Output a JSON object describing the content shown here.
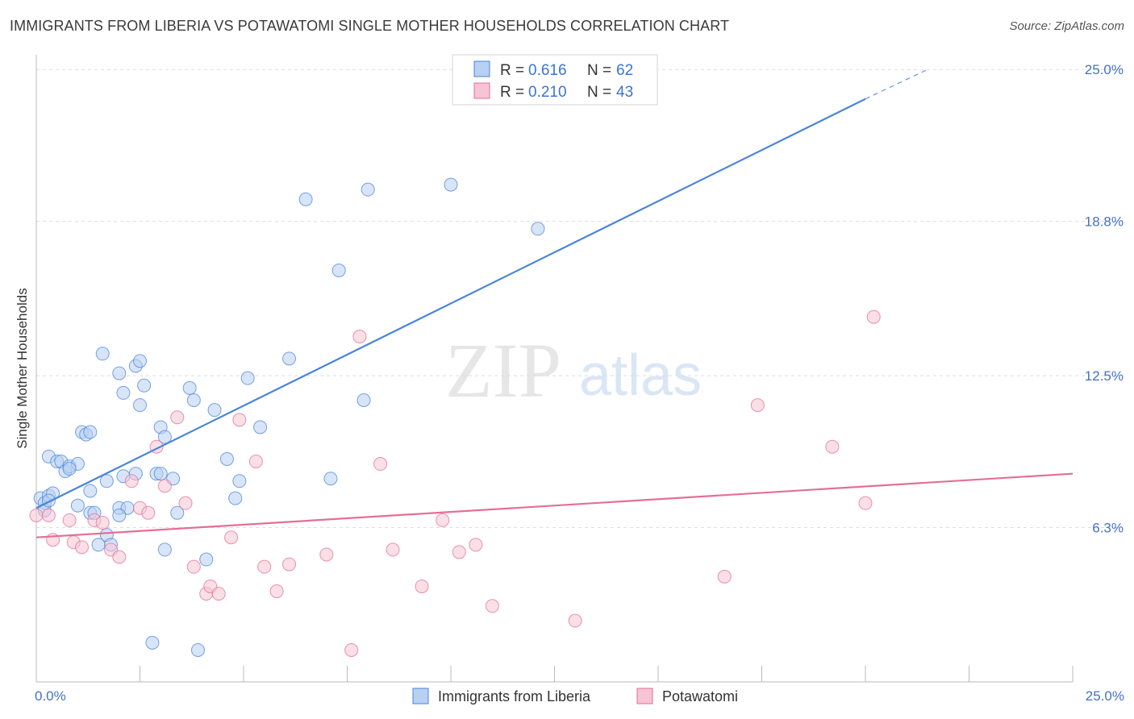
{
  "title": "IMMIGRANTS FROM LIBERIA VS POTAWATOMI SINGLE MOTHER HOUSEHOLDS CORRELATION CHART",
  "source": "Source: ZipAtlas.com",
  "watermark": {
    "zip": "ZIP",
    "atlas": "atlas"
  },
  "colors": {
    "blue": "#4a86d8",
    "blue_fill": "#b8d0f2",
    "pink": "#e36f97",
    "pink_fill": "#f6c4d4",
    "tick_text": "#4472c4"
  },
  "legend": {
    "rows": [
      {
        "r_label": "R = ",
        "r_value": "0.616",
        "n_label": "N = ",
        "n_value": "62"
      },
      {
        "r_label": "R = ",
        "r_value": "0.210",
        "n_label": "N = ",
        "n_value": "43"
      }
    ]
  },
  "chart_data": {
    "type": "scatter",
    "title": "IMMIGRANTS FROM LIBERIA VS POTAWATOMI SINGLE MOTHER HOUSEHOLDS CORRELATION CHART",
    "xlabel": "",
    "ylabel": "Single Mother Households",
    "xlim": [
      0,
      25
    ],
    "ylim": [
      0,
      25.6
    ],
    "x_tick_labels": [
      "0.0%",
      "25.0%"
    ],
    "y_ticks": [
      6.3,
      12.5,
      18.8,
      25.0
    ],
    "y_tick_labels": [
      "6.3%",
      "12.5%",
      "18.8%",
      "25.0%"
    ],
    "grid": "horizontal dashed",
    "legend_position": "top-center",
    "series": [
      {
        "name": "Immigrants from Liberia",
        "r": 0.616,
        "n": 62,
        "trend": {
          "x0": 0,
          "y0": 7.1,
          "x1": 20,
          "y1": 23.8,
          "dashed_to_x": 21.5,
          "dashed_to_y": 25.0
        },
        "points": [
          [
            0.1,
            7.5
          ],
          [
            0.2,
            7.3
          ],
          [
            0.3,
            7.6
          ],
          [
            0.4,
            7.7
          ],
          [
            0.3,
            9.2
          ],
          [
            0.5,
            9.0
          ],
          [
            0.6,
            9.0
          ],
          [
            0.7,
            8.6
          ],
          [
            0.8,
            8.8
          ],
          [
            1.0,
            8.9
          ],
          [
            1.1,
            10.2
          ],
          [
            1.2,
            10.1
          ],
          [
            1.3,
            10.2
          ],
          [
            0.8,
            8.7
          ],
          [
            1.3,
            7.8
          ],
          [
            1.6,
            13.4
          ],
          [
            2.0,
            12.6
          ],
          [
            2.1,
            11.8
          ],
          [
            2.4,
            12.9
          ],
          [
            2.5,
            13.1
          ],
          [
            2.5,
            11.3
          ],
          [
            2.6,
            12.1
          ],
          [
            3.0,
            10.4
          ],
          [
            3.1,
            10.0
          ],
          [
            2.9,
            8.5
          ],
          [
            3.0,
            8.5
          ],
          [
            3.3,
            8.3
          ],
          [
            2.4,
            8.5
          ],
          [
            2.1,
            8.4
          ],
          [
            1.7,
            8.2
          ],
          [
            1.3,
            6.9
          ],
          [
            1.4,
            6.9
          ],
          [
            1.0,
            7.2
          ],
          [
            2.0,
            7.1
          ],
          [
            2.2,
            7.1
          ],
          [
            2.0,
            6.8
          ],
          [
            3.4,
            6.9
          ],
          [
            1.7,
            6.0
          ],
          [
            1.8,
            5.6
          ],
          [
            1.5,
            5.6
          ],
          [
            3.1,
            5.4
          ],
          [
            3.7,
            12.0
          ],
          [
            3.8,
            11.5
          ],
          [
            4.3,
            11.1
          ],
          [
            4.6,
            9.1
          ],
          [
            4.8,
            7.5
          ],
          [
            4.9,
            8.2
          ],
          [
            5.1,
            12.4
          ],
          [
            5.4,
            10.4
          ],
          [
            6.1,
            13.2
          ],
          [
            6.5,
            19.7
          ],
          [
            7.3,
            16.8
          ],
          [
            7.9,
            11.5
          ],
          [
            8.0,
            20.1
          ],
          [
            10.0,
            20.3
          ],
          [
            12.1,
            18.5
          ],
          [
            7.1,
            8.3
          ],
          [
            4.1,
            5.0
          ],
          [
            2.8,
            1.6
          ],
          [
            3.9,
            1.3
          ],
          [
            0.2,
            7.0
          ],
          [
            0.3,
            7.4
          ]
        ]
      },
      {
        "name": "Potawatomi",
        "r": 0.21,
        "n": 43,
        "trend": {
          "x0": 0,
          "y0": 5.9,
          "x1": 25,
          "y1": 8.5
        },
        "points": [
          [
            0.0,
            6.8
          ],
          [
            0.3,
            6.8
          ],
          [
            0.4,
            5.8
          ],
          [
            0.8,
            6.6
          ],
          [
            0.9,
            5.7
          ],
          [
            1.1,
            5.5
          ],
          [
            1.4,
            6.6
          ],
          [
            1.6,
            6.5
          ],
          [
            1.8,
            5.4
          ],
          [
            2.0,
            5.1
          ],
          [
            2.3,
            8.2
          ],
          [
            2.5,
            7.1
          ],
          [
            2.7,
            6.9
          ],
          [
            2.9,
            9.6
          ],
          [
            3.1,
            8.0
          ],
          [
            3.4,
            10.8
          ],
          [
            3.6,
            7.3
          ],
          [
            3.8,
            4.7
          ],
          [
            4.1,
            3.6
          ],
          [
            4.2,
            3.9
          ],
          [
            4.4,
            3.6
          ],
          [
            4.7,
            5.9
          ],
          [
            4.9,
            10.7
          ],
          [
            5.3,
            9.0
          ],
          [
            5.5,
            4.7
          ],
          [
            5.8,
            3.7
          ],
          [
            6.1,
            4.8
          ],
          [
            7.0,
            5.2
          ],
          [
            7.6,
            1.3
          ],
          [
            7.8,
            14.1
          ],
          [
            8.3,
            8.9
          ],
          [
            8.6,
            5.4
          ],
          [
            9.3,
            3.9
          ],
          [
            9.8,
            6.6
          ],
          [
            10.2,
            5.3
          ],
          [
            10.6,
            5.6
          ],
          [
            11.0,
            3.1
          ],
          [
            13.0,
            2.5
          ],
          [
            16.6,
            4.3
          ],
          [
            17.4,
            11.3
          ],
          [
            19.2,
            9.6
          ],
          [
            20.0,
            7.3
          ],
          [
            20.2,
            14.9
          ]
        ]
      }
    ]
  }
}
